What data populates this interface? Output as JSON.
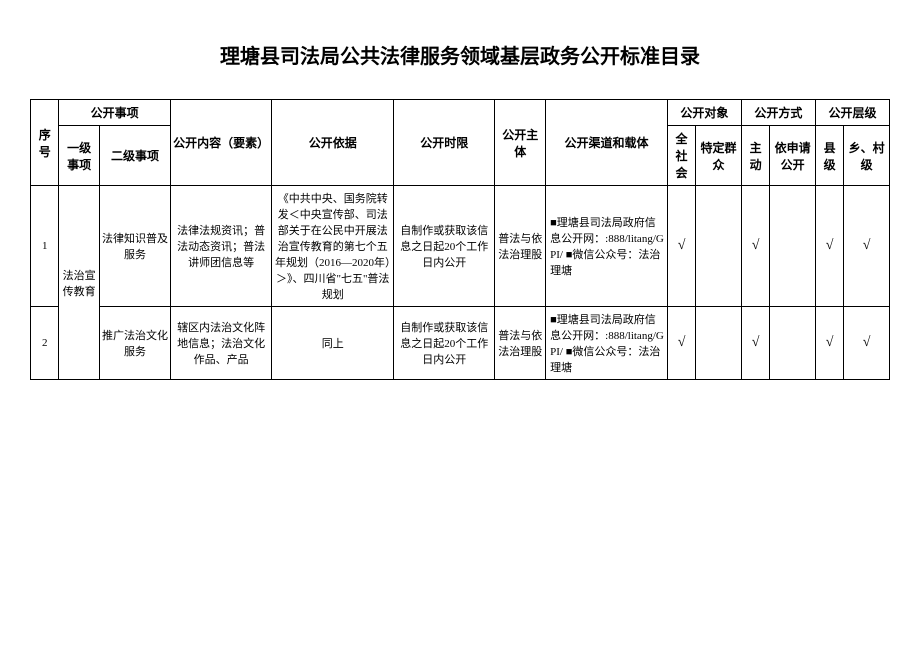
{
  "title": "理塘县司法局公共法律服务领域基层政务公开标准目录",
  "headers": {
    "seq": "序号",
    "matters": "公开事项",
    "level1": "一级事项",
    "level2": "二级事项",
    "content": "公开内容（要素）",
    "basis": "公开依据",
    "time": "公开时限",
    "subject": "公开主体",
    "channel": "公开渠道和载体",
    "target": "公开对象",
    "target_all": "全社会",
    "target_specific": "特定群众",
    "method": "公开方式",
    "method_active": "主动",
    "method_apply": "依申请公开",
    "level": "公开层级",
    "level_county": "县级",
    "level_village": "乡、村级"
  },
  "rows": [
    {
      "seq": "1",
      "level1": "法治宣传教育",
      "level2": "法律知识普及服务",
      "content": "法律法规资讯；普法动态资讯；普法讲师团信息等",
      "basis": "《中共中央、国务院转发＜中央宣传部、司法部关于在公民中开展法治宣传教育的第七个五年规划（2016—2020年）＞》、四川省\"七五\"普法规划",
      "time": "自制作或获取该信息之日起20个工作日内公开",
      "subject": "普法与依法治理股",
      "channel": "■理塘县司法局政府信息公开网：:888/litang/GPI/\n■微信公众号：法治理塘",
      "target_all": "√",
      "target_specific": "",
      "method_active": "√",
      "method_apply": "",
      "level_county": "√",
      "level_village": "√"
    },
    {
      "seq": "2",
      "level2": "推广法治文化服务",
      "content": "辖区内法治文化阵地信息；法治文化作品、产品",
      "basis": "同上",
      "time": "自制作或获取该信息之日起20个工作日内公开",
      "subject": "普法与依法治理股",
      "channel": "■理塘县司法局政府信息公开网：:888/litang/GPI/\n■微信公众号：法治理塘",
      "target_all": "√",
      "target_specific": "",
      "method_active": "√",
      "method_apply": "",
      "level_county": "√",
      "level_village": "√"
    }
  ]
}
